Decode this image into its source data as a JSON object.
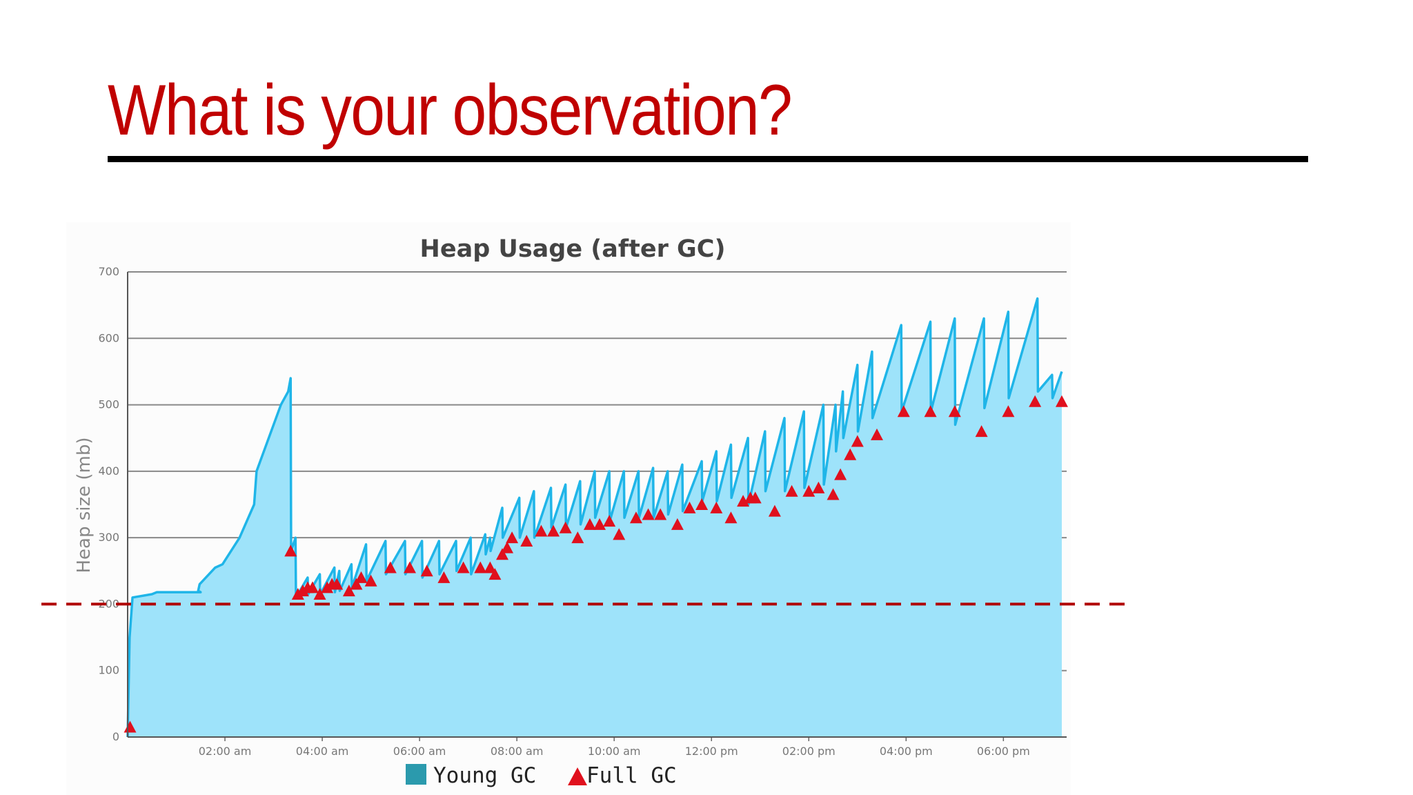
{
  "slide": {
    "title": "What is your observation?"
  },
  "colors": {
    "title": "#c00000",
    "rule": "#000000",
    "area_fill": "#9ee3fa",
    "line": "#1fb5e8",
    "full_gc_marker": "#e0101d",
    "young_gc_legend": "#2b9aad",
    "threshold_line": "#b00000",
    "grid": "#888888"
  },
  "chart_data": {
    "type": "area",
    "title": "Heap Usage (after GC)",
    "xlabel": "",
    "ylabel": "Heap size (mb)",
    "ylim": [
      0,
      700
    ],
    "xlim": [
      0,
      19.3
    ],
    "y_ticks": [
      0,
      100,
      200,
      300,
      400,
      500,
      600,
      700
    ],
    "x_ticks": [
      {
        "x": 2,
        "label": "02:00 am"
      },
      {
        "x": 4,
        "label": "04:00 am"
      },
      {
        "x": 6,
        "label": "06:00 am"
      },
      {
        "x": 8,
        "label": "08:00 am"
      },
      {
        "x": 10,
        "label": "10:00 am"
      },
      {
        "x": 12,
        "label": "12:00 pm"
      },
      {
        "x": 14,
        "label": "02:00 pm"
      },
      {
        "x": 16,
        "label": "04:00 pm"
      },
      {
        "x": 18,
        "label": "06:00 pm"
      }
    ],
    "grid": true,
    "legend_position": "bottom",
    "reference_line": {
      "y": 200,
      "style": "dashed"
    },
    "series": [
      {
        "name": "Young GC",
        "kind": "area",
        "points": [
          [
            0,
            0
          ],
          [
            0.04,
            150
          ],
          [
            0.1,
            210
          ],
          [
            0.5,
            215
          ],
          [
            0.6,
            218
          ],
          [
            1.5,
            218
          ],
          [
            1.45,
            220
          ],
          [
            1.48,
            230
          ],
          [
            1.8,
            255
          ],
          [
            1.95,
            260
          ],
          [
            2.3,
            300
          ],
          [
            2.6,
            350
          ],
          [
            2.65,
            400
          ],
          [
            3.15,
            500
          ],
          [
            3.3,
            520
          ],
          [
            3.35,
            540
          ],
          [
            3.36,
            280
          ],
          [
            3.45,
            300
          ],
          [
            3.46,
            210
          ],
          [
            3.7,
            240
          ],
          [
            3.71,
            215
          ],
          [
            3.95,
            245
          ],
          [
            3.96,
            215
          ],
          [
            4.25,
            255
          ],
          [
            4.26,
            218
          ],
          [
            4.35,
            250
          ],
          [
            4.36,
            220
          ],
          [
            4.6,
            260
          ],
          [
            4.61,
            225
          ],
          [
            4.9,
            290
          ],
          [
            4.91,
            235
          ],
          [
            5.3,
            295
          ],
          [
            5.31,
            245
          ],
          [
            5.7,
            295
          ],
          [
            5.71,
            245
          ],
          [
            6.05,
            295
          ],
          [
            6.06,
            240
          ],
          [
            6.4,
            295
          ],
          [
            6.41,
            245
          ],
          [
            6.75,
            295
          ],
          [
            6.76,
            250
          ],
          [
            7.05,
            300
          ],
          [
            7.06,
            245
          ],
          [
            7.35,
            305
          ],
          [
            7.36,
            275
          ],
          [
            7.45,
            300
          ],
          [
            7.46,
            280
          ],
          [
            7.7,
            345
          ],
          [
            7.71,
            300
          ],
          [
            8.05,
            360
          ],
          [
            8.06,
            300
          ],
          [
            8.35,
            370
          ],
          [
            8.36,
            300
          ],
          [
            8.7,
            375
          ],
          [
            8.71,
            315
          ],
          [
            9.0,
            380
          ],
          [
            9.01,
            315
          ],
          [
            9.3,
            385
          ],
          [
            9.31,
            320
          ],
          [
            9.6,
            400
          ],
          [
            9.61,
            330
          ],
          [
            9.9,
            400
          ],
          [
            9.91,
            325
          ],
          [
            10.2,
            400
          ],
          [
            10.21,
            330
          ],
          [
            10.5,
            400
          ],
          [
            10.51,
            330
          ],
          [
            10.8,
            405
          ],
          [
            10.81,
            330
          ],
          [
            11.1,
            400
          ],
          [
            11.11,
            335
          ],
          [
            11.4,
            410
          ],
          [
            11.41,
            340
          ],
          [
            11.8,
            415
          ],
          [
            11.81,
            355
          ],
          [
            12.1,
            430
          ],
          [
            12.11,
            355
          ],
          [
            12.4,
            440
          ],
          [
            12.41,
            360
          ],
          [
            12.75,
            450
          ],
          [
            12.76,
            350
          ],
          [
            13.1,
            460
          ],
          [
            13.11,
            370
          ],
          [
            13.5,
            480
          ],
          [
            13.51,
            370
          ],
          [
            13.9,
            490
          ],
          [
            13.91,
            375
          ],
          [
            14.3,
            500
          ],
          [
            14.31,
            380
          ],
          [
            14.55,
            500
          ],
          [
            14.56,
            430
          ],
          [
            14.7,
            520
          ],
          [
            14.71,
            450
          ],
          [
            15.0,
            560
          ],
          [
            15.01,
            460
          ],
          [
            15.3,
            580
          ],
          [
            15.31,
            480
          ],
          [
            15.9,
            620
          ],
          [
            15.91,
            490
          ],
          [
            16.5,
            625
          ],
          [
            16.51,
            490
          ],
          [
            17.0,
            630
          ],
          [
            17.01,
            470
          ],
          [
            17.6,
            630
          ],
          [
            17.61,
            495
          ],
          [
            18.1,
            640
          ],
          [
            18.11,
            510
          ],
          [
            18.7,
            660
          ],
          [
            18.71,
            520
          ],
          [
            19.0,
            545
          ],
          [
            19.01,
            510
          ],
          [
            19.2,
            550
          ]
        ]
      },
      {
        "name": "Full GC",
        "kind": "markers",
        "points": [
          [
            0.05,
            15
          ],
          [
            3.35,
            280
          ],
          [
            3.5,
            215
          ],
          [
            3.6,
            220
          ],
          [
            3.7,
            225
          ],
          [
            3.8,
            225
          ],
          [
            3.95,
            215
          ],
          [
            4.1,
            225
          ],
          [
            4.2,
            230
          ],
          [
            4.3,
            230
          ],
          [
            4.55,
            220
          ],
          [
            4.7,
            230
          ],
          [
            4.8,
            240
          ],
          [
            5.0,
            235
          ],
          [
            5.4,
            255
          ],
          [
            5.8,
            255
          ],
          [
            6.15,
            250
          ],
          [
            6.5,
            240
          ],
          [
            6.9,
            255
          ],
          [
            7.25,
            255
          ],
          [
            7.45,
            255
          ],
          [
            7.55,
            245
          ],
          [
            7.7,
            275
          ],
          [
            7.8,
            285
          ],
          [
            7.9,
            300
          ],
          [
            8.2,
            295
          ],
          [
            8.5,
            310
          ],
          [
            8.75,
            310
          ],
          [
            9.0,
            315
          ],
          [
            9.25,
            300
          ],
          [
            9.5,
            320
          ],
          [
            9.7,
            320
          ],
          [
            9.9,
            325
          ],
          [
            10.1,
            305
          ],
          [
            10.45,
            330
          ],
          [
            10.7,
            335
          ],
          [
            10.95,
            335
          ],
          [
            11.3,
            320
          ],
          [
            11.55,
            345
          ],
          [
            11.8,
            350
          ],
          [
            12.1,
            345
          ],
          [
            12.4,
            330
          ],
          [
            12.65,
            355
          ],
          [
            12.8,
            360
          ],
          [
            12.9,
            360
          ],
          [
            13.3,
            340
          ],
          [
            13.65,
            370
          ],
          [
            14.0,
            370
          ],
          [
            14.2,
            375
          ],
          [
            14.5,
            365
          ],
          [
            14.65,
            395
          ],
          [
            14.85,
            425
          ],
          [
            15.0,
            445
          ],
          [
            15.4,
            455
          ],
          [
            15.95,
            490
          ],
          [
            16.5,
            490
          ],
          [
            17.0,
            490
          ],
          [
            17.55,
            460
          ],
          [
            18.1,
            490
          ],
          [
            18.65,
            505
          ],
          [
            19.2,
            505
          ]
        ]
      }
    ]
  }
}
